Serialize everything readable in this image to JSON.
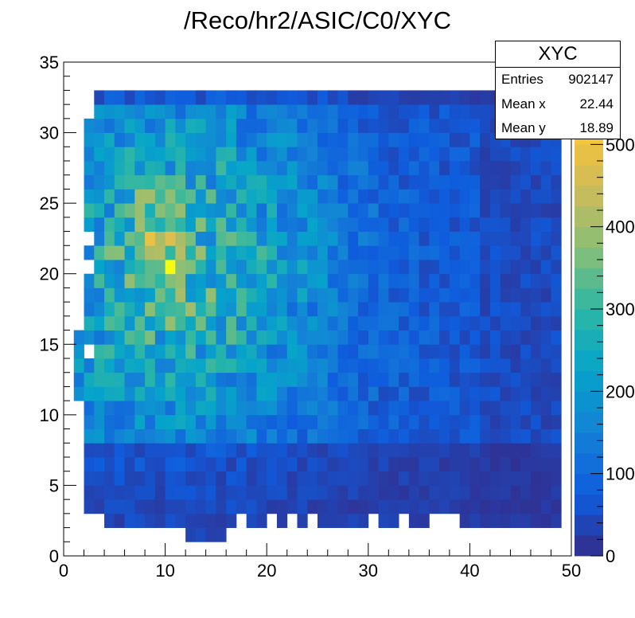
{
  "title": "/Reco/hr2/ASIC/C0/XYC",
  "stats": {
    "name": "XYC",
    "entries_label": "Entries",
    "entries_value": "902147",
    "meanx_label": "Mean x",
    "meanx_value": "22.44",
    "meany_label": "Mean y",
    "meany_value": "18.89"
  },
  "chart_data": {
    "type": "heatmap",
    "title": "/Reco/hr2/ASIC/C0/XYC",
    "xlim": [
      0,
      50
    ],
    "ylim": [
      0,
      35
    ],
    "x_ticks": [
      0,
      10,
      20,
      30,
      40,
      50
    ],
    "y_ticks": [
      0,
      5,
      10,
      15,
      20,
      25,
      30,
      35
    ],
    "z_range": [
      0,
      600
    ],
    "z_ticks_labels": [
      "0",
      "100",
      "200",
      "300",
      "400",
      "500"
    ],
    "bins_x": 50,
    "bins_y": 35,
    "hotspots": [
      {
        "x": 10,
        "y": 20,
        "value": 600
      },
      {
        "x": 8,
        "y": 22,
        "value": 490
      },
      {
        "x": 10,
        "y": 22,
        "value": 470
      },
      {
        "x": 11,
        "y": 21,
        "value": 420
      },
      {
        "x": 8,
        "y": 25,
        "value": 400
      },
      {
        "x": 11,
        "y": 20,
        "value": 380
      }
    ],
    "grid": false
  }
}
